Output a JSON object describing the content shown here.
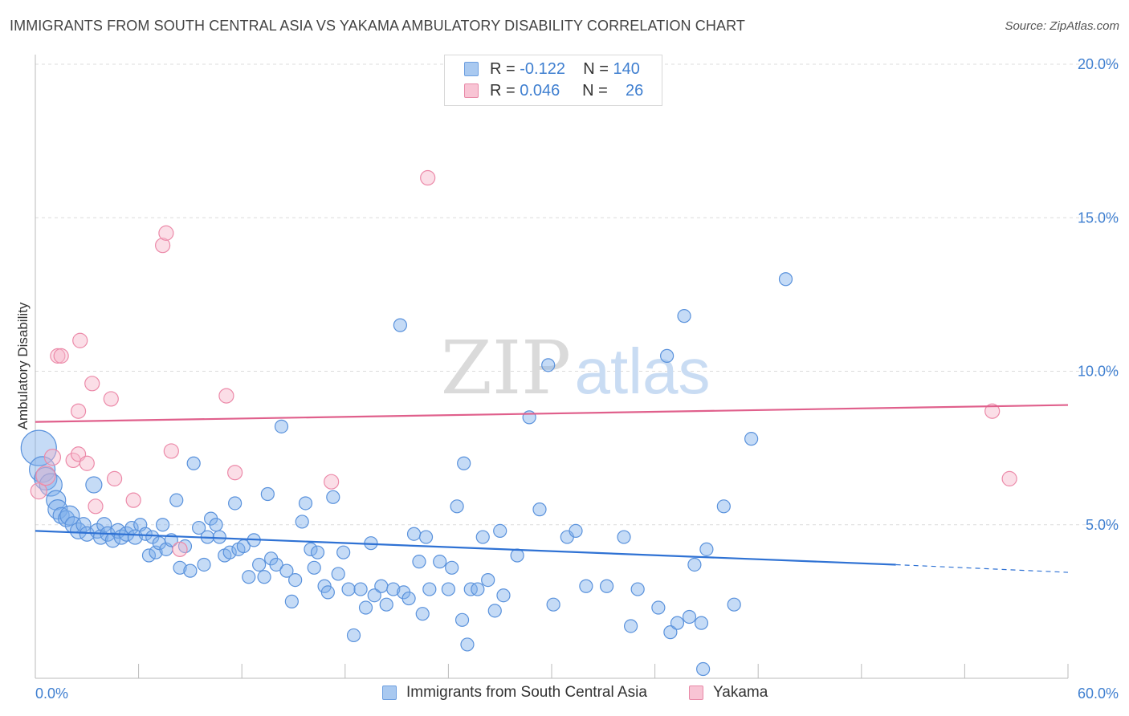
{
  "title": "IMMIGRANTS FROM SOUTH CENTRAL ASIA VS YAKAMA AMBULATORY DISABILITY CORRELATION CHART",
  "source": "Source: ZipAtlas.com",
  "watermark": {
    "zip": "ZIP",
    "atlas": "atlas"
  },
  "legend": {
    "rows": [
      {
        "r_label": "R =",
        "r_value": "-0.122",
        "n_label": "N =",
        "n_value": "140",
        "color": "#a9c9f0",
        "border": "#6d9fe0"
      },
      {
        "r_label": "R =",
        "r_value": "0.046",
        "n_label": "N =",
        "n_value": "26",
        "color": "#f8c4d4",
        "border": "#e88aa8"
      }
    ]
  },
  "bottom_legend": [
    {
      "label": "Immigrants from South Central Asia",
      "color": "#a9c9f0",
      "border": "#6d9fe0"
    },
    {
      "label": "Yakama",
      "color": "#f8c4d4",
      "border": "#e88aa8"
    }
  ],
  "chart_data": {
    "type": "scatter",
    "xlabel": "",
    "ylabel": "Ambulatory Disability",
    "xlim": [
      0,
      60
    ],
    "ylim": [
      0,
      20
    ],
    "x_tick_labels": [
      "0.0%",
      "60.0%"
    ],
    "y_ticks": [
      5,
      10,
      15,
      20
    ],
    "y_tick_labels": [
      "5.0%",
      "10.0%",
      "15.0%",
      "20.0%"
    ],
    "grid": true,
    "series": [
      {
        "name": "Immigrants from South Central Asia",
        "color": "#7fb0ea",
        "stroke": "#5a92dc",
        "trend": {
          "x0": 0,
          "y0": 4.8,
          "x1": 50,
          "y1": 3.7,
          "dash_x1": 60,
          "dash_y1": 3.45,
          "color": "#2f72d4"
        },
        "points": [
          [
            0.2,
            7.5,
            22
          ],
          [
            0.4,
            6.8,
            16
          ],
          [
            0.6,
            6.5,
            14
          ],
          [
            0.9,
            6.3,
            14
          ],
          [
            1.2,
            5.8,
            12
          ],
          [
            1.3,
            5.5,
            12
          ],
          [
            1.5,
            5.3,
            10
          ],
          [
            1.8,
            5.2,
            10
          ],
          [
            2.0,
            5.3,
            12
          ],
          [
            2.2,
            5.0,
            10
          ],
          [
            2.5,
            4.8,
            10
          ],
          [
            2.8,
            5.0,
            9
          ],
          [
            3.0,
            4.7,
            9
          ],
          [
            3.4,
            6.3,
            10
          ],
          [
            3.6,
            4.8,
            9
          ],
          [
            3.8,
            4.6,
            9
          ],
          [
            4.0,
            5.0,
            9
          ],
          [
            4.2,
            4.7,
            9
          ],
          [
            4.5,
            4.5,
            9
          ],
          [
            4.8,
            4.8,
            9
          ],
          [
            5.0,
            4.6,
            9
          ],
          [
            5.3,
            4.7,
            9
          ],
          [
            5.6,
            4.9,
            8
          ],
          [
            5.8,
            4.6,
            9
          ],
          [
            6.1,
            5.0,
            8
          ],
          [
            6.4,
            4.7,
            8
          ],
          [
            6.6,
            4.0,
            8
          ],
          [
            6.8,
            4.6,
            8
          ],
          [
            7.0,
            4.1,
            8
          ],
          [
            7.2,
            4.4,
            8
          ],
          [
            7.4,
            5.0,
            8
          ],
          [
            7.6,
            4.2,
            8
          ],
          [
            7.9,
            4.5,
            8
          ],
          [
            8.2,
            5.8,
            8
          ],
          [
            8.4,
            3.6,
            8
          ],
          [
            8.7,
            4.3,
            8
          ],
          [
            9.0,
            3.5,
            8
          ],
          [
            9.2,
            7.0,
            8
          ],
          [
            9.5,
            4.9,
            8
          ],
          [
            9.8,
            3.7,
            8
          ],
          [
            10.0,
            4.6,
            8
          ],
          [
            10.2,
            5.2,
            8
          ],
          [
            10.5,
            5.0,
            8
          ],
          [
            10.7,
            4.6,
            8
          ],
          [
            11.0,
            4.0,
            8
          ],
          [
            11.3,
            4.1,
            8
          ],
          [
            11.6,
            5.7,
            8
          ],
          [
            11.8,
            4.2,
            8
          ],
          [
            12.1,
            4.3,
            8
          ],
          [
            12.4,
            3.3,
            8
          ],
          [
            12.7,
            4.5,
            8
          ],
          [
            13.0,
            3.7,
            8
          ],
          [
            13.3,
            3.3,
            8
          ],
          [
            13.5,
            6.0,
            8
          ],
          [
            13.7,
            3.9,
            8
          ],
          [
            14.0,
            3.7,
            8
          ],
          [
            14.3,
            8.2,
            8
          ],
          [
            14.6,
            3.5,
            8
          ],
          [
            14.9,
            2.5,
            8
          ],
          [
            15.1,
            3.2,
            8
          ],
          [
            15.5,
            5.1,
            8
          ],
          [
            15.7,
            5.7,
            8
          ],
          [
            16.0,
            4.2,
            8
          ],
          [
            16.2,
            3.6,
            8
          ],
          [
            16.4,
            4.1,
            8
          ],
          [
            16.8,
            3.0,
            8
          ],
          [
            17.0,
            2.8,
            8
          ],
          [
            17.3,
            5.9,
            8
          ],
          [
            17.6,
            3.4,
            8
          ],
          [
            17.9,
            4.1,
            8
          ],
          [
            18.2,
            2.9,
            8
          ],
          [
            18.5,
            1.4,
            8
          ],
          [
            18.9,
            2.9,
            8
          ],
          [
            19.2,
            2.3,
            8
          ],
          [
            19.5,
            4.4,
            8
          ],
          [
            19.7,
            2.7,
            8
          ],
          [
            20.1,
            3.0,
            8
          ],
          [
            20.4,
            2.4,
            8
          ],
          [
            20.8,
            2.9,
            8
          ],
          [
            21.2,
            11.5,
            8
          ],
          [
            21.4,
            2.8,
            8
          ],
          [
            21.7,
            2.6,
            8
          ],
          [
            22.0,
            4.7,
            8
          ],
          [
            22.3,
            3.8,
            8
          ],
          [
            22.5,
            2.1,
            8
          ],
          [
            22.7,
            4.6,
            8
          ],
          [
            22.9,
            2.9,
            8
          ],
          [
            23.5,
            3.8,
            8
          ],
          [
            24.0,
            2.9,
            8
          ],
          [
            24.2,
            3.6,
            8
          ],
          [
            24.5,
            5.6,
            8
          ],
          [
            24.8,
            1.9,
            8
          ],
          [
            24.9,
            7.0,
            8
          ],
          [
            25.1,
            1.1,
            8
          ],
          [
            25.3,
            2.9,
            8
          ],
          [
            25.7,
            2.9,
            8
          ],
          [
            26.0,
            4.6,
            8
          ],
          [
            26.3,
            3.2,
            8
          ],
          [
            26.7,
            2.2,
            8
          ],
          [
            27.0,
            4.8,
            8
          ],
          [
            27.2,
            2.7,
            8
          ],
          [
            28.0,
            4.0,
            8
          ],
          [
            28.7,
            8.5,
            8
          ],
          [
            29.3,
            5.5,
            8
          ],
          [
            29.8,
            10.2,
            8
          ],
          [
            30.1,
            2.4,
            8
          ],
          [
            30.9,
            4.6,
            8
          ],
          [
            31.4,
            4.8,
            8
          ],
          [
            32.0,
            3.0,
            8
          ],
          [
            33.2,
            3.0,
            8
          ],
          [
            34.2,
            4.6,
            8
          ],
          [
            34.6,
            1.7,
            8
          ],
          [
            35.0,
            2.9,
            8
          ],
          [
            36.2,
            2.3,
            8
          ],
          [
            36.7,
            10.5,
            8
          ],
          [
            36.9,
            1.5,
            8
          ],
          [
            37.3,
            1.8,
            8
          ],
          [
            37.7,
            11.8,
            8
          ],
          [
            38.0,
            2.0,
            8
          ],
          [
            38.3,
            3.7,
            8
          ],
          [
            38.7,
            1.8,
            8
          ],
          [
            38.8,
            0.3,
            8
          ],
          [
            39.0,
            4.2,
            8
          ],
          [
            40.0,
            5.6,
            8
          ],
          [
            40.6,
            2.4,
            8
          ],
          [
            41.6,
            7.8,
            8
          ],
          [
            43.6,
            13.0,
            8
          ]
        ]
      },
      {
        "name": "Yakama",
        "color": "#f7b6ca",
        "stroke": "#ec8aa9",
        "trend": {
          "x0": 0,
          "y0": 8.35,
          "x1": 60,
          "y1": 8.9,
          "color": "#e0608c"
        },
        "points": [
          [
            0.2,
            6.1,
            10
          ],
          [
            0.6,
            6.6,
            12
          ],
          [
            1.0,
            7.2,
            10
          ],
          [
            1.3,
            10.5,
            9
          ],
          [
            1.5,
            10.5,
            9
          ],
          [
            2.2,
            7.1,
            9
          ],
          [
            2.5,
            7.3,
            9
          ],
          [
            2.5,
            8.7,
            9
          ],
          [
            2.6,
            11.0,
            9
          ],
          [
            3.0,
            7.0,
            9
          ],
          [
            3.3,
            9.6,
            9
          ],
          [
            3.5,
            5.6,
            9
          ],
          [
            4.4,
            9.1,
            9
          ],
          [
            4.6,
            6.5,
            9
          ],
          [
            5.7,
            5.8,
            9
          ],
          [
            7.4,
            14.1,
            9
          ],
          [
            7.6,
            14.5,
            9
          ],
          [
            7.9,
            7.4,
            9
          ],
          [
            8.4,
            4.2,
            9
          ],
          [
            11.1,
            9.2,
            9
          ],
          [
            11.6,
            6.7,
            9
          ],
          [
            17.2,
            6.4,
            9
          ],
          [
            22.8,
            16.3,
            9
          ],
          [
            55.6,
            8.7,
            9
          ],
          [
            56.6,
            6.5,
            9
          ]
        ]
      }
    ]
  }
}
